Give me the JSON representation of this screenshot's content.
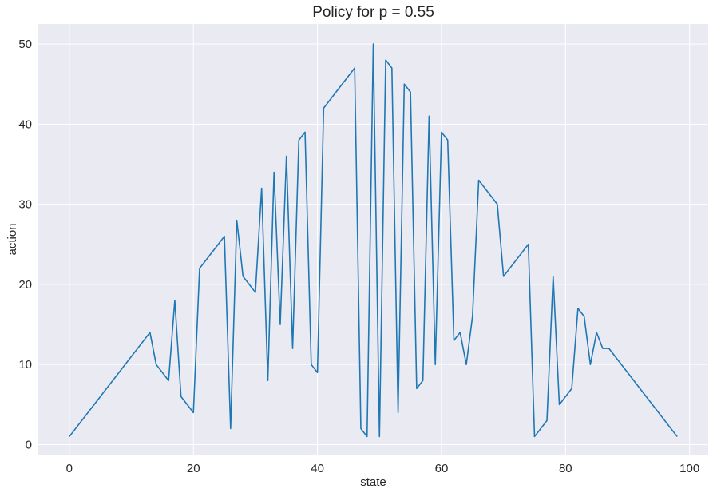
{
  "chart_data": {
    "type": "line",
    "title": "Policy for p = 0.55",
    "xlabel": "state",
    "ylabel": "action",
    "xlim": [
      -5,
      103
    ],
    "ylim": [
      -1.25,
      52.5
    ],
    "xticks": [
      0,
      20,
      40,
      60,
      80,
      100
    ],
    "yticks": [
      0,
      10,
      20,
      30,
      40,
      50
    ],
    "grid": true,
    "colors": {
      "background": "#eaeaf2",
      "grid": "#ffffff",
      "line": "#1f77b4",
      "text": "#262626"
    },
    "series": [
      {
        "x": [
          0,
          13,
          14,
          16,
          17,
          18,
          20,
          21,
          25,
          26,
          27,
          28,
          30,
          31,
          32,
          33,
          34,
          35,
          36,
          37,
          38,
          39,
          40,
          41,
          46,
          47,
          48,
          49,
          50,
          51,
          52,
          53,
          54,
          55,
          56,
          57,
          58,
          59,
          60,
          61,
          62,
          63,
          64,
          65,
          66,
          69,
          70,
          74,
          75,
          77,
          78,
          79,
          81,
          82,
          83,
          84,
          85,
          86,
          87,
          98
        ],
        "y": [
          1,
          14,
          10,
          8,
          18,
          6,
          4,
          22,
          26,
          2,
          28,
          21,
          19,
          32,
          8,
          34,
          15,
          36,
          12,
          38,
          39,
          10,
          9,
          42,
          47,
          2,
          1,
          50,
          1,
          48,
          47,
          4,
          45,
          44,
          7,
          8,
          41,
          10,
          39,
          38,
          13,
          14,
          10,
          16,
          33,
          30,
          21,
          25,
          1,
          3,
          21,
          5,
          7,
          17,
          16,
          10,
          14,
          12,
          12,
          1
        ]
      }
    ]
  }
}
